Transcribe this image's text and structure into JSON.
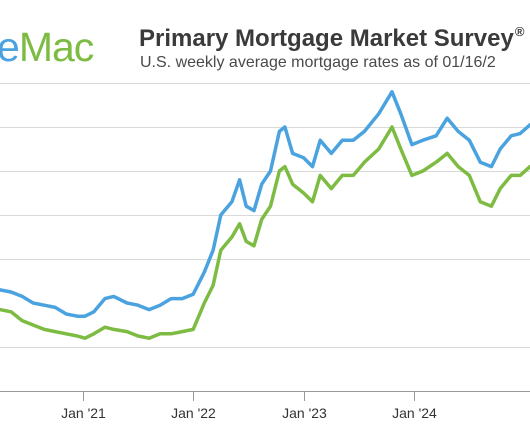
{
  "header": {
    "logo_part1": "e",
    "logo_part2": "Mac",
    "title": "Primary Mortgage Market Survey",
    "title_mark": "®",
    "subtitle": "U.S. weekly average mortgage rates as of 01/16/2"
  },
  "colors": {
    "logo_blue": "#4aa3df",
    "logo_green": "#7dbb42",
    "series_blue": "#4aa3df",
    "series_green": "#7dbb42",
    "grid": "#d9d9d9",
    "axis": "#999999"
  },
  "chart_data": {
    "type": "line",
    "title": "Primary Mortgage Market Survey®",
    "subtitle": "U.S. weekly average mortgage rates as of 01/16/2",
    "xlabel": "",
    "ylabel": "",
    "x_tick_labels": [
      "Jan '21",
      "Jan '22",
      "Jan '23",
      "Jan '24"
    ],
    "x_range": [
      2020.25,
      2025.05
    ],
    "ylim": [
      1,
      8
    ],
    "y_gridlines": [
      2,
      4,
      5,
      6,
      7
    ],
    "grid": "horizontal",
    "legend": "none",
    "series": [
      {
        "color": "#4aa3df",
        "points": [
          [
            2020.25,
            3.3
          ],
          [
            2020.35,
            3.25
          ],
          [
            2020.45,
            3.15
          ],
          [
            2020.55,
            3.0
          ],
          [
            2020.65,
            2.95
          ],
          [
            2020.75,
            2.9
          ],
          [
            2020.85,
            2.75
          ],
          [
            2020.95,
            2.7
          ],
          [
            2021.02,
            2.7
          ],
          [
            2021.1,
            2.8
          ],
          [
            2021.2,
            3.1
          ],
          [
            2021.28,
            3.15
          ],
          [
            2021.4,
            3.0
          ],
          [
            2021.5,
            2.95
          ],
          [
            2021.6,
            2.85
          ],
          [
            2021.7,
            2.95
          ],
          [
            2021.8,
            3.1
          ],
          [
            2021.9,
            3.1
          ],
          [
            2022.0,
            3.2
          ],
          [
            2022.1,
            3.7
          ],
          [
            2022.18,
            4.2
          ],
          [
            2022.25,
            5.0
          ],
          [
            2022.35,
            5.3
          ],
          [
            2022.42,
            5.8
          ],
          [
            2022.48,
            5.2
          ],
          [
            2022.55,
            5.1
          ],
          [
            2022.62,
            5.7
          ],
          [
            2022.7,
            6.0
          ],
          [
            2022.78,
            6.9
          ],
          [
            2022.83,
            7.0
          ],
          [
            2022.9,
            6.4
          ],
          [
            2023.0,
            6.3
          ],
          [
            2023.08,
            6.1
          ],
          [
            2023.15,
            6.7
          ],
          [
            2023.25,
            6.4
          ],
          [
            2023.35,
            6.7
          ],
          [
            2023.45,
            6.7
          ],
          [
            2023.55,
            6.9
          ],
          [
            2023.68,
            7.3
          ],
          [
            2023.8,
            7.8
          ],
          [
            2023.88,
            7.3
          ],
          [
            2023.98,
            6.6
          ],
          [
            2024.08,
            6.7
          ],
          [
            2024.2,
            6.8
          ],
          [
            2024.3,
            7.2
          ],
          [
            2024.4,
            6.9
          ],
          [
            2024.5,
            6.7
          ],
          [
            2024.6,
            6.2
          ],
          [
            2024.7,
            6.1
          ],
          [
            2024.78,
            6.5
          ],
          [
            2024.88,
            6.8
          ],
          [
            2024.96,
            6.85
          ],
          [
            2025.05,
            7.05
          ]
        ]
      },
      {
        "color": "#7dbb42",
        "points": [
          [
            2020.25,
            2.85
          ],
          [
            2020.35,
            2.8
          ],
          [
            2020.45,
            2.6
          ],
          [
            2020.55,
            2.5
          ],
          [
            2020.65,
            2.4
          ],
          [
            2020.75,
            2.35
          ],
          [
            2020.85,
            2.3
          ],
          [
            2020.95,
            2.25
          ],
          [
            2021.02,
            2.2
          ],
          [
            2021.1,
            2.3
          ],
          [
            2021.2,
            2.45
          ],
          [
            2021.28,
            2.4
          ],
          [
            2021.4,
            2.35
          ],
          [
            2021.5,
            2.25
          ],
          [
            2021.6,
            2.2
          ],
          [
            2021.7,
            2.3
          ],
          [
            2021.8,
            2.3
          ],
          [
            2021.9,
            2.35
          ],
          [
            2022.0,
            2.4
          ],
          [
            2022.1,
            3.0
          ],
          [
            2022.18,
            3.4
          ],
          [
            2022.25,
            4.2
          ],
          [
            2022.35,
            4.5
          ],
          [
            2022.42,
            4.8
          ],
          [
            2022.48,
            4.4
          ],
          [
            2022.55,
            4.3
          ],
          [
            2022.62,
            4.9
          ],
          [
            2022.7,
            5.2
          ],
          [
            2022.78,
            6.0
          ],
          [
            2022.83,
            6.1
          ],
          [
            2022.9,
            5.7
          ],
          [
            2023.0,
            5.5
          ],
          [
            2023.08,
            5.3
          ],
          [
            2023.15,
            5.9
          ],
          [
            2023.25,
            5.6
          ],
          [
            2023.35,
            5.9
          ],
          [
            2023.45,
            5.9
          ],
          [
            2023.55,
            6.2
          ],
          [
            2023.68,
            6.5
          ],
          [
            2023.8,
            7.0
          ],
          [
            2023.88,
            6.5
          ],
          [
            2023.98,
            5.9
          ],
          [
            2024.08,
            6.0
          ],
          [
            2024.2,
            6.2
          ],
          [
            2024.3,
            6.4
          ],
          [
            2024.4,
            6.1
          ],
          [
            2024.5,
            5.9
          ],
          [
            2024.6,
            5.3
          ],
          [
            2024.7,
            5.2
          ],
          [
            2024.78,
            5.6
          ],
          [
            2024.88,
            5.9
          ],
          [
            2024.96,
            5.9
          ],
          [
            2025.05,
            6.1
          ]
        ]
      }
    ]
  }
}
